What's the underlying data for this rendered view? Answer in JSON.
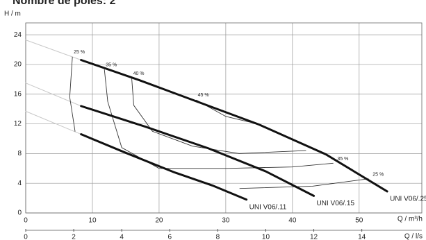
{
  "chart_data": {
    "type": "line",
    "title": "Nombre de pôles: 2",
    "y_label": "H / m",
    "x_label": "Q / m³/h",
    "x2_label": "Q / l/s",
    "xlim": [
      0,
      59.4
    ],
    "xticks": [
      0,
      10,
      20,
      30,
      40,
      50
    ],
    "x2lim": [
      0,
      16.5
    ],
    "x2ticks": [
      0,
      2,
      4,
      6,
      8,
      10,
      12,
      14
    ],
    "ylim": [
      0,
      25.6
    ],
    "yticks": [
      0,
      4,
      8,
      12,
      16,
      20,
      24
    ],
    "grid": true,
    "series": [
      {
        "name": "UNI V06/.25",
        "color": "#111111",
        "x": [
          8.3,
          17,
          26,
          35,
          45,
          54.2
        ],
        "values": [
          20.6,
          17.9,
          14.9,
          11.9,
          7.9,
          2.9
        ]
      },
      {
        "name": "UNI V06/.15",
        "color": "#111111",
        "x": [
          8.3,
          18,
          27.4,
          36,
          43.2
        ],
        "values": [
          14.4,
          11.6,
          8.7,
          5.6,
          2.3
        ]
      },
      {
        "name": "UNI V06/.11",
        "color": "#111111",
        "x": [
          8.3,
          15,
          22.2,
          28,
          33.1
        ],
        "values": [
          10.6,
          8.1,
          5.5,
          3.7,
          1.8
        ]
      }
    ],
    "extensions": [
      {
        "color": "#c8c8c8",
        "x": [
          0,
          8.3
        ],
        "values": [
          23.3,
          20.6
        ]
      },
      {
        "color": "#c8c8c8",
        "x": [
          0,
          8.3
        ],
        "values": [
          17.5,
          14.4
        ]
      },
      {
        "color": "#c8c8c8",
        "x": [
          0,
          8.3
        ],
        "values": [
          13.7,
          10.6
        ]
      }
    ],
    "efficiency_curves": [
      {
        "name": "25 %",
        "color": "#333333",
        "x": [
          7.0,
          6.6,
          7.4,
          null,
          32.1,
          43.0,
          51.4
        ],
        "values": [
          21.0,
          15.6,
          11.0,
          null,
          3.3,
          3.6,
          4.6
        ]
      },
      {
        "name": "35 %",
        "color": "#333333",
        "x": [
          11.8,
          12.3,
          14.4,
          20,
          30,
          40,
          46.1
        ],
        "values": [
          19.3,
          15.0,
          8.8,
          6.0,
          6.0,
          6.2,
          6.7
        ]
      },
      {
        "name": "40 %",
        "color": "#333333",
        "x": [
          15.9,
          16.2,
          19,
          25,
          32,
          42
        ],
        "values": [
          18.1,
          14.5,
          11,
          9,
          8,
          8.4
        ]
      },
      {
        "name": "45 %",
        "color": "#333333",
        "x": [
          25.6,
          30,
          34.7
        ],
        "values": [
          15.2,
          13.0,
          12.0
        ]
      }
    ]
  }
}
